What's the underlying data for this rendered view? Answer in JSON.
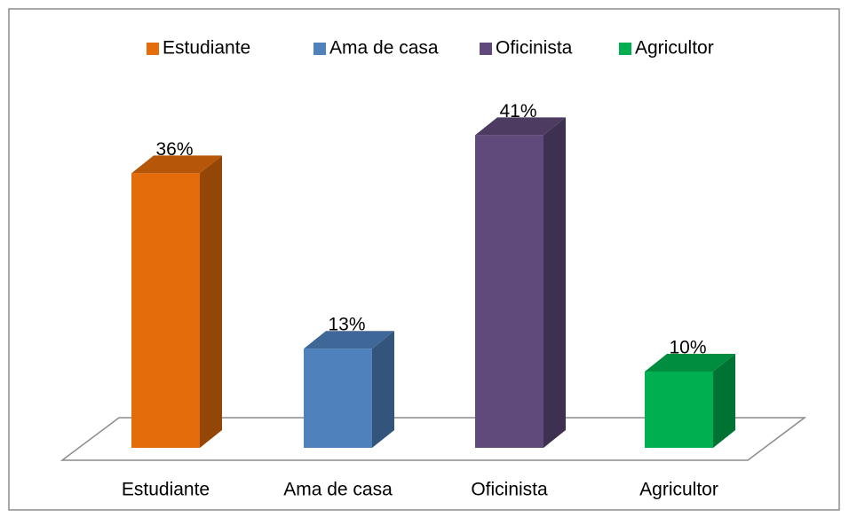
{
  "chart_data": {
    "type": "bar3d",
    "categories": [
      "Estudiante",
      "Ama de casa",
      "Oficinista",
      "Agricultor"
    ],
    "values": [
      36,
      13,
      41,
      10
    ],
    "value_labels": [
      "36%",
      "13%",
      "41%",
      "10%"
    ],
    "colors": [
      "#e46c0a",
      "#4f81bd",
      "#604a7b",
      "#00b050"
    ],
    "legend": "top"
  }
}
